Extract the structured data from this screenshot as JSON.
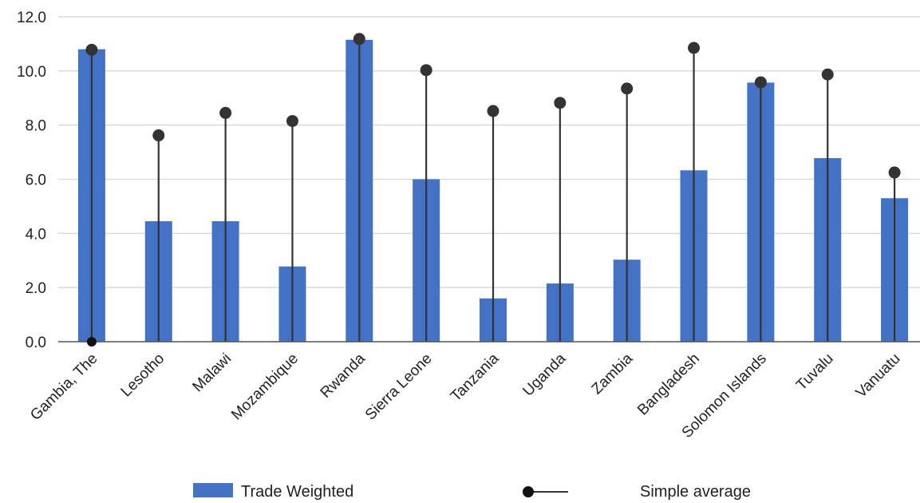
{
  "chart_data": {
    "type": "bar",
    "categories": [
      "Gambia, The",
      "Lesotho",
      "Malawi",
      "Mozambique",
      "Rwanda",
      "Sierra Leone",
      "Tanzania",
      "Uganda",
      "Zambia",
      "Bangladesh",
      "Solomon Islands",
      "Tuvalu",
      "Vanuatu"
    ],
    "series": [
      {
        "name": "Trade Weighted",
        "kind": "bar",
        "color": "#4472C4",
        "values": [
          10.8,
          4.45,
          4.45,
          2.78,
          11.15,
          6.0,
          1.6,
          2.15,
          3.03,
          6.33,
          9.57,
          6.78,
          5.3
        ]
      },
      {
        "name": "Simple average",
        "kind": "lollipop",
        "color": "#333333",
        "values": [
          10.78,
          7.62,
          8.45,
          8.15,
          11.18,
          10.03,
          8.52,
          8.82,
          9.35,
          10.85,
          9.58,
          9.87,
          6.25
        ]
      }
    ],
    "y_ticks": [
      "0.0",
      "2.0",
      "4.0",
      "6.0",
      "8.0",
      "10.0",
      "12.0"
    ],
    "ylim": [
      0,
      12
    ],
    "grid": true,
    "legend_position": "bottom"
  }
}
